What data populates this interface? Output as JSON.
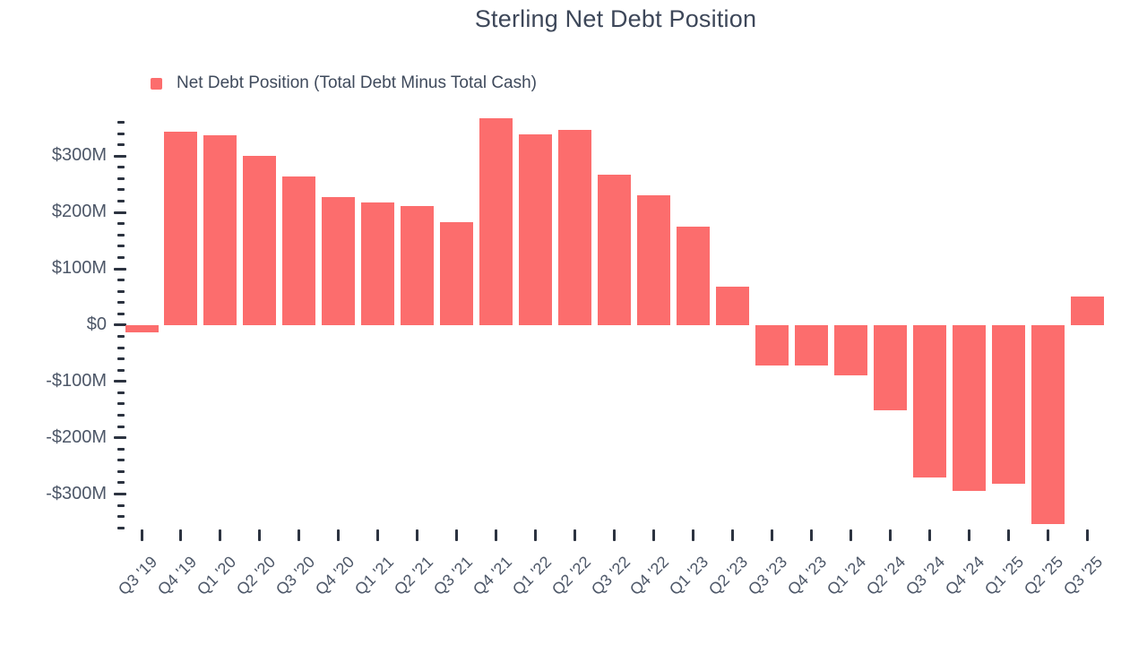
{
  "title": "Sterling Net Debt Position",
  "legend": {
    "label": "Net Debt Position (Total Debt Minus Total Cash)"
  },
  "colors": {
    "bar": "#fc6d6d",
    "title_text": "#3d4759",
    "axis_text": "#4d5768",
    "tick": "#2c3340",
    "background": "#ffffff"
  },
  "chart_data": {
    "type": "bar",
    "title": "Sterling Net Debt Position",
    "series_name": "Net Debt Position (Total Debt Minus Total Cash)",
    "unit": "USD millions",
    "xlabel": "",
    "ylabel": "",
    "categories": [
      "Q3 '19",
      "Q4 '19",
      "Q1 '20",
      "Q2 '20",
      "Q3 '20",
      "Q4 '20",
      "Q1 '21",
      "Q2 '21",
      "Q3 '21",
      "Q4 '21",
      "Q1 '22",
      "Q2 '22",
      "Q3 '22",
      "Q4 '22",
      "Q1 '23",
      "Q2 '23",
      "Q3 '23",
      "Q4 '23",
      "Q1 '24",
      "Q2 '24",
      "Q3 '24",
      "Q4 '24",
      "Q1 '25",
      "Q2 '25",
      "Q3 '25"
    ],
    "values": [
      -13,
      344,
      337,
      301,
      264,
      227,
      218,
      211,
      182,
      367,
      339,
      347,
      267,
      231,
      175,
      68,
      -71,
      -72,
      -90,
      -152,
      -270,
      -295,
      -281,
      -354,
      51
    ],
    "bar_color": "#fc6d6d",
    "ylim": [
      -366,
      372
    ],
    "y_major_ticks": [
      300,
      200,
      100,
      0,
      -100,
      -200,
      -300
    ],
    "y_major_tick_labels": [
      "$300M",
      "$200M",
      "$100M",
      "$0",
      "-$100M",
      "-$200M",
      "-$300M"
    ],
    "y_minor_tick_step": 20,
    "y_minor_tick_range": [
      -360,
      360
    ],
    "grid": false,
    "legend_position": "top-left"
  }
}
